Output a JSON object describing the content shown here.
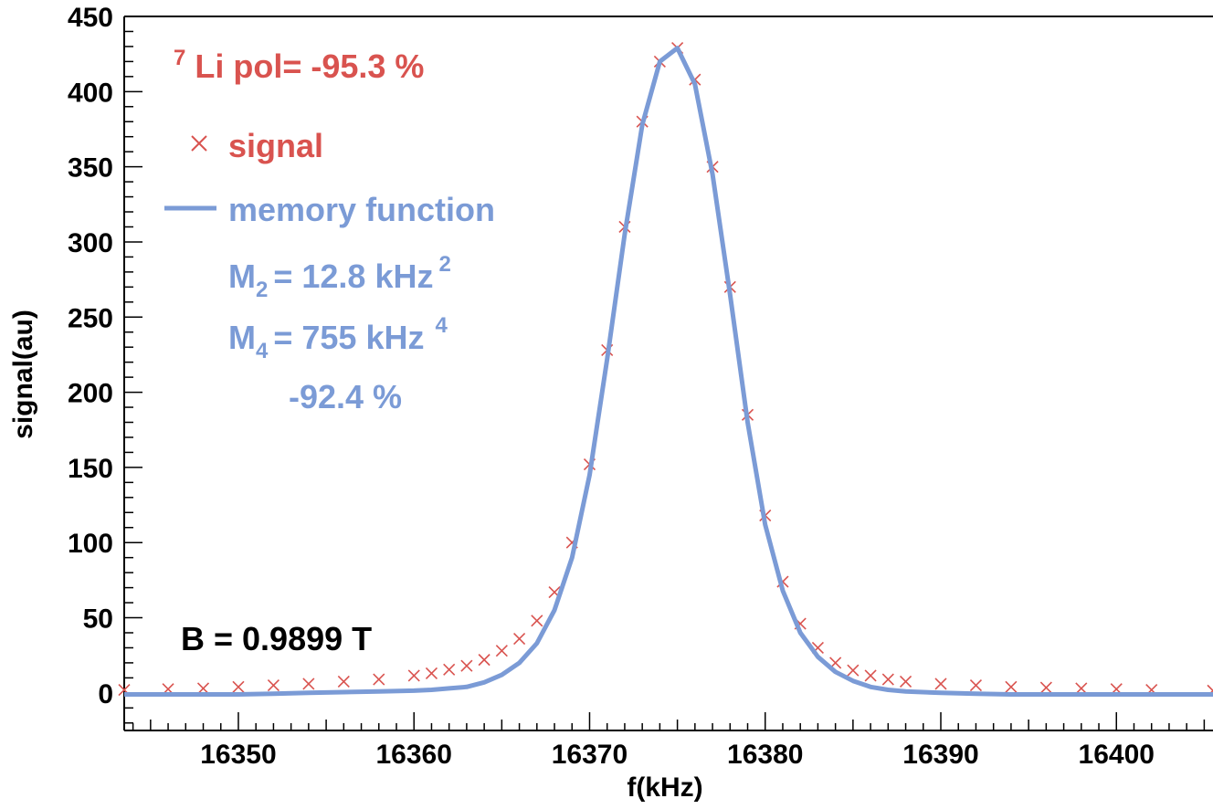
{
  "chart_data": {
    "type": "scatter",
    "title": "",
    "xlabel": "f(kHz)",
    "ylabel": "signal(au)",
    "xlim": [
      16343.5,
      16405.5
    ],
    "ylim": [
      -25,
      450
    ],
    "x_ticks": [
      16350,
      16360,
      16370,
      16380,
      16390,
      16400
    ],
    "x_tick_labels": [
      "16350",
      "16360",
      "16370",
      "16380",
      "16390",
      "16400"
    ],
    "y_ticks": [
      0,
      50,
      100,
      150,
      200,
      250,
      300,
      350,
      400,
      450
    ],
    "y_tick_labels": [
      "0",
      "50",
      "100",
      "150",
      "200",
      "250",
      "300",
      "350",
      "400",
      "450"
    ],
    "grid": false,
    "legend_position": "top-left",
    "series": [
      {
        "name": "signal",
        "kind": "markers",
        "marker": "x",
        "color": "#d9534f",
        "x": [
          16343.5,
          16346,
          16348,
          16350,
          16352,
          16354,
          16356,
          16358,
          16360,
          16361,
          16362,
          16363,
          16364,
          16365,
          16366,
          16367,
          16368,
          16369,
          16370,
          16371,
          16372,
          16373,
          16374,
          16375,
          16376,
          16377,
          16378,
          16379,
          16380,
          16381,
          16382,
          16383,
          16384,
          16385,
          16386,
          16387,
          16388,
          16390,
          16392,
          16394,
          16396,
          16398,
          16400,
          16402,
          16405.5
        ],
        "y": [
          2,
          2.5,
          3,
          4,
          5,
          6,
          7.5,
          9,
          11.5,
          13,
          15.5,
          18,
          22,
          28,
          36,
          48,
          67,
          100,
          152,
          228,
          310,
          380,
          420,
          429,
          408,
          350,
          270,
          185,
          118,
          74,
          46,
          30,
          20,
          15,
          11.5,
          9,
          7.5,
          6,
          5,
          4,
          3.5,
          3,
          2.5,
          2,
          1.5
        ]
      },
      {
        "name": "memory function",
        "kind": "line",
        "color": "#7b9bd6",
        "x": [
          16343.5,
          16346,
          16348,
          16350,
          16352,
          16354,
          16356,
          16358,
          16360,
          16361,
          16362,
          16363,
          16364,
          16365,
          16366,
          16367,
          16368,
          16369,
          16370,
          16371,
          16372,
          16373,
          16374,
          16375,
          16376,
          16377,
          16378,
          16379,
          16380,
          16381,
          16382,
          16383,
          16384,
          16385,
          16386,
          16387,
          16388,
          16390,
          16392,
          16394,
          16396,
          16398,
          16400,
          16402,
          16405.5
        ],
        "y": [
          -1,
          -1,
          -1,
          -1,
          -0.5,
          0,
          0.5,
          1,
          1.5,
          2,
          3,
          4,
          7,
          12,
          20,
          33,
          55,
          90,
          145,
          222,
          305,
          378,
          420,
          429,
          405,
          345,
          265,
          180,
          112,
          68,
          40,
          24,
          14,
          8,
          4,
          2,
          1,
          0,
          -0.5,
          -1,
          -1,
          -1,
          -1,
          -1,
          -1
        ]
      }
    ],
    "annotations": {
      "pol_sup": "7",
      "pol_text": "Li pol= -95.3 %",
      "m2_main": "M",
      "m2_sub": "2",
      "m2_value": "= 12.8 kHz",
      "m2_sup": "2",
      "m4_main": "M",
      "m4_sub": "4",
      "m4_value": "= 755 kHz",
      "m4_sup": "4",
      "fit_pol": "-92.4 %",
      "field": "B = 0.9899 T"
    },
    "colors": {
      "signal": "#d9534f",
      "fit": "#7b9bd6",
      "text": "#000000"
    }
  }
}
